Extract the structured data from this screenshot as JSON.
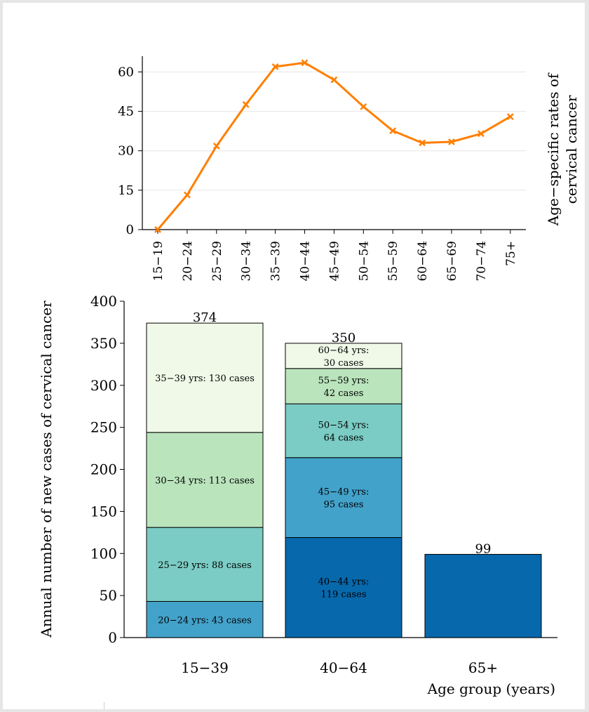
{
  "chart_data": [
    {
      "type": "line",
      "ylabel_lines": [
        "Age−specific rates of",
        "cervical cancer"
      ],
      "x": [
        "15−19",
        "20−24",
        "25−29",
        "30−34",
        "35−39",
        "40−44",
        "45−49",
        "50−54",
        "55−59",
        "60−64",
        "65−69",
        "70−74",
        "75+"
      ],
      "values": [
        0,
        13.2,
        31.8,
        47.6,
        62.0,
        63.5,
        57.0,
        46.8,
        37.6,
        33.0,
        33.4,
        36.5,
        43.0
      ],
      "ylim": [
        0,
        66
      ],
      "yticks": [
        0,
        15,
        30,
        45,
        60
      ],
      "grid": true,
      "color": "#ff7f00"
    },
    {
      "type": "bar",
      "stacked": true,
      "categories": [
        "15−39",
        "40−64",
        "65+"
      ],
      "xlabel": "Age group (years)",
      "ylabel": "Annual number of new cases of cervical cancer",
      "ylim": [
        0,
        400
      ],
      "yticks": [
        0,
        50,
        100,
        150,
        200,
        250,
        300,
        350,
        400
      ],
      "totals": [
        "374",
        "350",
        "99"
      ],
      "stacks": [
        [
          {
            "value": 43,
            "color": "#43a2ca",
            "label_lines": [
              "20−24 yrs: 43 cases"
            ]
          },
          {
            "value": 88,
            "color": "#7bccc4",
            "label_lines": [
              "25−29 yrs: 88 cases"
            ]
          },
          {
            "value": 113,
            "color": "#bae4bc",
            "label_lines": [
              "30−34 yrs: 113 cases"
            ]
          },
          {
            "value": 130,
            "color": "#f0f9e8",
            "label_lines": [
              "35−39 yrs: 130 cases"
            ]
          }
        ],
        [
          {
            "value": 119,
            "color": "#0868ac",
            "label_lines": [
              "40−44 yrs:",
              "119 cases"
            ]
          },
          {
            "value": 95,
            "color": "#43a2ca",
            "label_lines": [
              "45−49 yrs:",
              "95 cases"
            ]
          },
          {
            "value": 64,
            "color": "#7bccc4",
            "label_lines": [
              "50−54 yrs:",
              "64 cases"
            ]
          },
          {
            "value": 42,
            "color": "#bae4bc",
            "label_lines": [
              "55−59 yrs:",
              "42 cases"
            ]
          },
          {
            "value": 30,
            "color": "#f0f9e8",
            "label_lines": [
              "60−64 yrs:",
              "30 cases"
            ]
          }
        ],
        [
          {
            "value": 99,
            "color": "#0868ac",
            "label_lines": []
          }
        ]
      ]
    }
  ]
}
